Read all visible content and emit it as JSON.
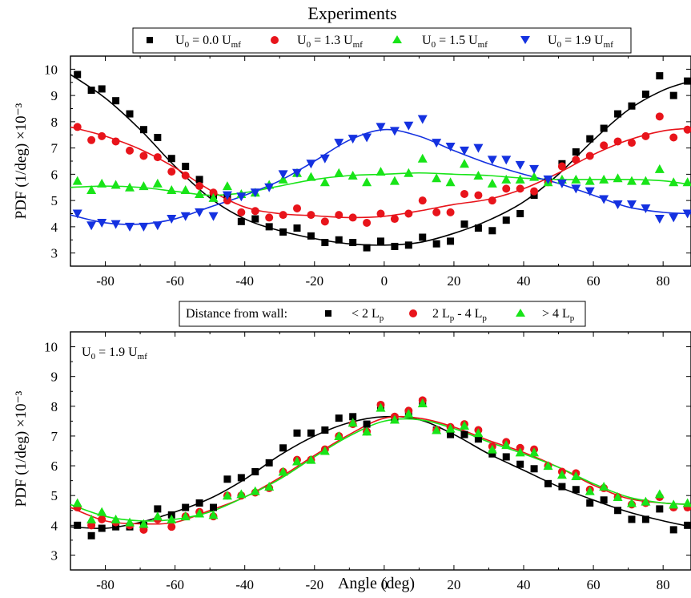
{
  "figure_title": "Experiments",
  "x_axis_label": "Angle (deg)",
  "chart_data": [
    {
      "type": "scatter",
      "title": "Experiments",
      "xlabel": "",
      "ylabel": "PDF (1/deg) ×10⁻³",
      "xlim": [
        -90,
        88
      ],
      "ylim": [
        2.5,
        10.5
      ],
      "xticks": [
        -80,
        -60,
        -40,
        -20,
        0,
        20,
        40,
        60,
        80
      ],
      "yticks": [
        3,
        4,
        5,
        6,
        7,
        8,
        9,
        10
      ],
      "grid": false,
      "legend_position": "top-center, above plot",
      "legend_title": "",
      "series": [
        {
          "name": "U₀ = 0.0 U_mf",
          "marker": "square",
          "color": "#000000",
          "x": [
            -88,
            -84,
            -81,
            -77,
            -73,
            -69,
            -65,
            -61,
            -57,
            -53,
            -49,
            -45,
            -41,
            -37,
            -33,
            -29,
            -25,
            -21,
            -17,
            -13,
            -9,
            -5,
            -1,
            3,
            7,
            11,
            15,
            19,
            23,
            27,
            31,
            35,
            39,
            43,
            47,
            51,
            55,
            59,
            63,
            67,
            71,
            75,
            79,
            83,
            87
          ],
          "y": [
            9.8,
            9.2,
            9.25,
            8.8,
            8.3,
            7.7,
            7.4,
            6.6,
            6.3,
            5.8,
            5.2,
            5.15,
            4.2,
            4.3,
            4.0,
            3.8,
            3.95,
            3.65,
            3.4,
            3.5,
            3.4,
            3.2,
            3.45,
            3.25,
            3.3,
            3.6,
            3.35,
            3.45,
            4.1,
            3.95,
            3.85,
            4.25,
            4.5,
            5.2,
            5.8,
            6.4,
            6.85,
            7.35,
            7.75,
            8.3,
            8.6,
            9.05,
            9.75,
            9.0,
            9.55
          ],
          "fit_x": [
            -90,
            -80,
            -70,
            -60,
            -50,
            -40,
            -30,
            -20,
            -10,
            0,
            10,
            20,
            30,
            40,
            50,
            60,
            70,
            80,
            88
          ],
          "fit_y": [
            9.8,
            8.9,
            7.7,
            6.3,
            5.1,
            4.3,
            3.85,
            3.55,
            3.35,
            3.3,
            3.4,
            3.75,
            4.25,
            4.95,
            6.0,
            7.3,
            8.45,
            9.2,
            9.55
          ]
        },
        {
          "name": "U₀ = 1.3 U_mf",
          "marker": "circle",
          "color": "#e8141b",
          "x": [
            -88,
            -84,
            -81,
            -77,
            -73,
            -69,
            -65,
            -61,
            -57,
            -53,
            -49,
            -45,
            -41,
            -37,
            -33,
            -29,
            -25,
            -21,
            -17,
            -13,
            -9,
            -5,
            -1,
            3,
            7,
            11,
            15,
            19,
            23,
            27,
            31,
            35,
            39,
            43,
            47,
            51,
            55,
            59,
            63,
            67,
            71,
            75,
            79,
            83,
            87
          ],
          "y": [
            7.8,
            7.3,
            7.45,
            7.25,
            6.9,
            6.7,
            6.65,
            6.1,
            5.95,
            5.55,
            5.3,
            5.0,
            4.55,
            4.6,
            4.35,
            4.45,
            4.7,
            4.45,
            4.2,
            4.45,
            4.35,
            4.15,
            4.5,
            4.3,
            4.5,
            5.0,
            4.55,
            4.55,
            5.25,
            5.2,
            5.0,
            5.45,
            5.45,
            5.35,
            5.7,
            6.3,
            6.55,
            6.7,
            7.1,
            7.25,
            7.2,
            7.45,
            8.2,
            7.4,
            7.7
          ],
          "fit_x": [
            -90,
            -80,
            -70,
            -60,
            -50,
            -40,
            -30,
            -20,
            -10,
            0,
            10,
            20,
            30,
            40,
            50,
            60,
            70,
            80,
            88
          ],
          "fit_y": [
            7.8,
            7.45,
            6.95,
            6.25,
            5.4,
            4.75,
            4.5,
            4.42,
            4.35,
            4.4,
            4.6,
            4.85,
            5.05,
            5.45,
            6.05,
            6.75,
            7.3,
            7.65,
            7.75
          ]
        },
        {
          "name": "U₀ = 1.5 U_mf",
          "marker": "triangle-up",
          "color": "#18e418",
          "x": [
            -88,
            -84,
            -81,
            -77,
            -73,
            -69,
            -65,
            -61,
            -57,
            -53,
            -49,
            -45,
            -41,
            -37,
            -33,
            -29,
            -25,
            -21,
            -17,
            -13,
            -9,
            -5,
            -1,
            3,
            7,
            11,
            15,
            19,
            23,
            27,
            31,
            35,
            39,
            43,
            47,
            51,
            55,
            59,
            63,
            67,
            71,
            75,
            79,
            83,
            87
          ],
          "y": [
            5.75,
            5.4,
            5.65,
            5.6,
            5.5,
            5.55,
            5.65,
            5.4,
            5.4,
            5.25,
            5.1,
            5.55,
            5.25,
            5.3,
            5.6,
            5.8,
            6.05,
            5.9,
            5.7,
            6.05,
            5.95,
            5.7,
            6.1,
            5.75,
            6.05,
            6.6,
            5.85,
            5.7,
            6.4,
            5.95,
            5.65,
            5.8,
            5.8,
            5.9,
            5.7,
            5.8,
            5.8,
            5.75,
            5.8,
            5.85,
            5.75,
            5.75,
            6.2,
            5.7,
            5.7
          ],
          "fit_x": [
            -90,
            -80,
            -70,
            -60,
            -50,
            -40,
            -30,
            -20,
            -10,
            0,
            10,
            20,
            30,
            40,
            50,
            60,
            70,
            80,
            88
          ],
          "fit_y": [
            5.5,
            5.55,
            5.5,
            5.35,
            5.2,
            5.3,
            5.55,
            5.8,
            5.95,
            6.0,
            6.05,
            6.0,
            5.95,
            5.85,
            5.8,
            5.8,
            5.8,
            5.75,
            5.6
          ]
        },
        {
          "name": "U₀ = 1.9 U_mf",
          "marker": "triangle-down",
          "color": "#1431e0",
          "x": [
            -88,
            -84,
            -81,
            -77,
            -73,
            -69,
            -65,
            -61,
            -57,
            -53,
            -49,
            -45,
            -41,
            -37,
            -33,
            -29,
            -25,
            -21,
            -17,
            -13,
            -9,
            -5,
            -1,
            3,
            7,
            11,
            15,
            19,
            23,
            27,
            31,
            35,
            39,
            43,
            47,
            51,
            55,
            59,
            63,
            67,
            71,
            75,
            79,
            83,
            87
          ],
          "y": [
            4.5,
            4.05,
            4.15,
            4.1,
            4.0,
            4.0,
            4.05,
            4.3,
            4.4,
            4.55,
            4.4,
            5.2,
            5.15,
            5.3,
            5.5,
            6.0,
            6.05,
            6.4,
            6.6,
            7.2,
            7.35,
            7.4,
            7.8,
            7.65,
            7.85,
            8.1,
            7.2,
            7.05,
            6.9,
            7.0,
            6.55,
            6.55,
            6.35,
            6.2,
            5.8,
            5.65,
            5.45,
            5.35,
            5.05,
            4.85,
            4.85,
            4.7,
            4.3,
            4.35,
            4.5
          ],
          "fit_x": [
            -90,
            -80,
            -70,
            -60,
            -50,
            -40,
            -30,
            -20,
            -10,
            0,
            10,
            20,
            30,
            40,
            50,
            60,
            70,
            80,
            88
          ],
          "fit_y": [
            4.45,
            4.15,
            4.1,
            4.3,
            4.75,
            5.2,
            5.75,
            6.5,
            7.3,
            7.7,
            7.45,
            6.9,
            6.4,
            6.0,
            5.65,
            5.2,
            4.75,
            4.55,
            4.5
          ]
        }
      ]
    },
    {
      "type": "scatter",
      "title": "",
      "xlabel": "Angle (deg)",
      "ylabel": "PDF (1/deg) ×10⁻³",
      "xlim": [
        -90,
        88
      ],
      "ylim": [
        2.5,
        10.5
      ],
      "xticks": [
        -80,
        -60,
        -40,
        -20,
        0,
        20,
        40,
        60,
        80
      ],
      "yticks": [
        3,
        4,
        5,
        6,
        7,
        8,
        9,
        10
      ],
      "grid": false,
      "legend_position": "top-center, between plots",
      "legend_title": "Distance from wall:",
      "annotation": "U₀ = 1.9 U_mf",
      "series": [
        {
          "name": "< 2 L_p",
          "marker": "square",
          "color": "#000000",
          "x": [
            -88,
            -84,
            -81,
            -77,
            -73,
            -69,
            -65,
            -61,
            -57,
            -53,
            -49,
            -45,
            -41,
            -37,
            -33,
            -29,
            -25,
            -21,
            -17,
            -13,
            -9,
            -5,
            -1,
            3,
            7,
            11,
            15,
            19,
            23,
            27,
            31,
            35,
            39,
            43,
            47,
            51,
            55,
            59,
            63,
            67,
            71,
            75,
            79,
            83,
            87
          ],
          "y": [
            4.0,
            3.65,
            3.9,
            3.95,
            3.95,
            4.0,
            4.55,
            4.35,
            4.6,
            4.75,
            4.6,
            5.55,
            5.6,
            5.8,
            6.1,
            6.6,
            7.1,
            7.1,
            7.2,
            7.6,
            7.65,
            7.4,
            8.0,
            7.6,
            7.75,
            8.15,
            7.2,
            7.05,
            7.05,
            6.9,
            6.4,
            6.3,
            6.05,
            5.9,
            5.4,
            5.3,
            5.2,
            4.75,
            4.85,
            4.5,
            4.2,
            4.2,
            4.55,
            3.85,
            4.0
          ],
          "fit_x": [
            -90,
            -80,
            -70,
            -60,
            -50,
            -40,
            -30,
            -20,
            -10,
            0,
            10,
            20,
            30,
            40,
            50,
            60,
            70,
            80,
            88
          ],
          "fit_y": [
            3.95,
            3.9,
            4.1,
            4.45,
            4.9,
            5.55,
            6.35,
            7.0,
            7.45,
            7.65,
            7.55,
            7.05,
            6.4,
            5.85,
            5.3,
            4.85,
            4.45,
            4.15,
            3.95
          ]
        },
        {
          "name": "2 L_p - 4 L_p",
          "marker": "circle",
          "color": "#e8141b",
          "x": [
            -88,
            -84,
            -81,
            -77,
            -73,
            -69,
            -65,
            -61,
            -57,
            -53,
            -49,
            -45,
            -41,
            -37,
            -33,
            -29,
            -25,
            -21,
            -17,
            -13,
            -9,
            -5,
            -1,
            3,
            7,
            11,
            15,
            19,
            23,
            27,
            31,
            35,
            39,
            43,
            47,
            51,
            55,
            59,
            63,
            67,
            71,
            75,
            79,
            83,
            87
          ],
          "y": [
            4.6,
            4.0,
            4.2,
            4.1,
            4.0,
            3.85,
            4.2,
            3.95,
            4.3,
            4.45,
            4.3,
            5.0,
            5.0,
            5.1,
            5.25,
            5.8,
            6.2,
            6.2,
            6.55,
            7.0,
            7.4,
            7.15,
            8.05,
            7.65,
            7.85,
            8.2,
            7.2,
            7.3,
            7.4,
            7.2,
            6.65,
            6.8,
            6.6,
            6.55,
            6.0,
            5.8,
            5.75,
            5.2,
            5.25,
            4.95,
            4.7,
            4.75,
            4.95,
            4.6,
            4.6
          ],
          "fit_x": [
            -90,
            -80,
            -70,
            -60,
            -50,
            -40,
            -30,
            -20,
            -10,
            0,
            10,
            20,
            30,
            40,
            50,
            60,
            70,
            80,
            88
          ],
          "fit_y": [
            4.6,
            4.15,
            4.05,
            4.1,
            4.5,
            4.95,
            5.6,
            6.35,
            7.05,
            7.6,
            7.6,
            7.3,
            6.85,
            6.45,
            5.95,
            5.35,
            4.9,
            4.75,
            4.7
          ]
        },
        {
          "name": "> 4 L_p",
          "marker": "triangle-up",
          "color": "#18e418",
          "x": [
            -88,
            -84,
            -81,
            -77,
            -73,
            -69,
            -65,
            -61,
            -57,
            -53,
            -49,
            -45,
            -41,
            -37,
            -33,
            -29,
            -25,
            -21,
            -17,
            -13,
            -9,
            -5,
            -1,
            3,
            7,
            11,
            15,
            19,
            23,
            27,
            31,
            35,
            39,
            43,
            47,
            51,
            55,
            59,
            63,
            67,
            71,
            75,
            79,
            83,
            87
          ],
          "y": [
            4.75,
            4.2,
            4.45,
            4.2,
            4.1,
            4.05,
            4.3,
            4.2,
            4.3,
            4.4,
            4.35,
            5.0,
            5.05,
            5.15,
            5.3,
            5.8,
            6.15,
            6.2,
            6.5,
            7.0,
            7.45,
            7.15,
            7.95,
            7.55,
            7.75,
            8.1,
            7.2,
            7.25,
            7.35,
            7.1,
            6.55,
            6.7,
            6.45,
            6.45,
            6.0,
            5.7,
            5.65,
            5.15,
            5.3,
            4.95,
            4.75,
            4.8,
            5.05,
            4.7,
            4.75
          ],
          "fit_x": [
            -90,
            -80,
            -70,
            -60,
            -50,
            -40,
            -30,
            -20,
            -10,
            0,
            10,
            20,
            30,
            40,
            50,
            60,
            70,
            80,
            88
          ],
          "fit_y": [
            4.7,
            4.3,
            4.15,
            4.2,
            4.45,
            4.95,
            5.55,
            6.3,
            7.0,
            7.5,
            7.55,
            7.25,
            6.8,
            6.4,
            5.95,
            5.4,
            4.95,
            4.75,
            4.7
          ]
        }
      ]
    }
  ]
}
